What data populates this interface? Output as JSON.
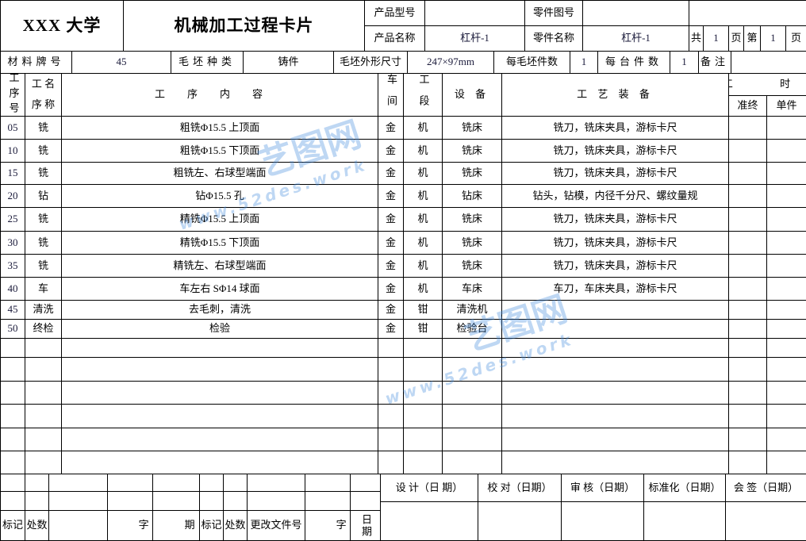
{
  "header": {
    "school": "XXX 大学",
    "title": "机械加工过程卡片",
    "product_model_label": "产品型号",
    "product_model": "",
    "part_drawing_label": "零件图号",
    "part_drawing": "",
    "product_name_label": "产品名称",
    "product_name": "杠杆-1",
    "part_name_label": "零件名称",
    "part_name": "杠杆-1",
    "total_label": "共",
    "total_pages": "1",
    "page_unit": "页",
    "page_label": "第",
    "page": "1"
  },
  "material": {
    "grade_label": "材料牌号",
    "grade": "45",
    "blank_type_label": "毛坯种类",
    "blank_type": "铸件",
    "blank_size_label": "毛坯外形尺寸",
    "blank_size": "247×97mm",
    "per_blank_label": "每毛坯件数",
    "per_blank": "1",
    "per_unit_label": "每台件数",
    "per_unit": "1",
    "remark_label": "备注",
    "remark": ""
  },
  "columns": {
    "op_no": "工序号",
    "op_name_top": "工 名",
    "op_name_bottom": "序 称",
    "content": "工序内容",
    "workshop": "车间",
    "section": "工段",
    "equipment": "设 备",
    "tooling": "工 艺 装 备",
    "time": "工  时",
    "prep_time": "准终",
    "unit_time": "单件"
  },
  "operations": [
    {
      "no": "05",
      "name": "铣",
      "content": "粗铣Φ15.5 上顶面",
      "workshop": "金",
      "section": "机",
      "equipment": "铣床",
      "tooling": "铣刀，铣床夹具，游标卡尺"
    },
    {
      "no": "10",
      "name": "铣",
      "content": "粗铣Φ15.5 下顶面",
      "workshop": "金",
      "section": "机",
      "equipment": "铣床",
      "tooling": "铣刀，铣床夹具，游标卡尺"
    },
    {
      "no": "15",
      "name": "铣",
      "content": "粗铣左、右球型端面",
      "workshop": "金",
      "section": "机",
      "equipment": "铣床",
      "tooling": "铣刀，铣床夹具，游标卡尺"
    },
    {
      "no": "20",
      "name": "钻",
      "content": "钻Φ15.5 孔",
      "workshop": "金",
      "section": "机",
      "equipment": "钻床",
      "tooling": "钻头，钻模，内径千分尺、螺纹量规"
    },
    {
      "no": "25",
      "name": "铣",
      "content": "精铣Φ15.5 上顶面",
      "workshop": "金",
      "section": "机",
      "equipment": "铣床",
      "tooling": "铣刀，铣床夹具，游标卡尺"
    },
    {
      "no": "30",
      "name": "铣",
      "content": "精铣Φ15.5 下顶面",
      "workshop": "金",
      "section": "机",
      "equipment": "铣床",
      "tooling": "铣刀，铣床夹具，游标卡尺"
    },
    {
      "no": "35",
      "name": "铣",
      "content": "精铣左、右球型端面",
      "workshop": "金",
      "section": "机",
      "equipment": "铣床",
      "tooling": "铣刀，铣床夹具，游标卡尺"
    },
    {
      "no": "40",
      "name": "车",
      "content": "车左右 SΦ14 球面",
      "workshop": "金",
      "section": "机",
      "equipment": "车床",
      "tooling": "车刀，车床夹具，游标卡尺"
    },
    {
      "no": "45",
      "name": "清洗",
      "content": "去毛刺，清洗",
      "workshop": "金",
      "section": "钳",
      "equipment": "清洗机",
      "tooling": ""
    },
    {
      "no": "50",
      "name": "终检",
      "content": "检验",
      "workshop": "金",
      "section": "钳",
      "equipment": "检验台",
      "tooling": ""
    }
  ],
  "footer": {
    "mark": "标记",
    "count": "处数",
    "sign": "签 字",
    "date": "日 期",
    "mark2": "标记",
    "count2": "处数",
    "change_doc": "更改文件号",
    "sign2": "签 字",
    "date2": "日期",
    "design": "设 计（日 期）",
    "check": "校 对（日期）",
    "review": "审 核（日期）",
    "standard": "标准化（日期）",
    "countersign": "会 签（日期）"
  },
  "watermark": {
    "logo": "艺图网",
    "url": "www.52des.work"
  }
}
